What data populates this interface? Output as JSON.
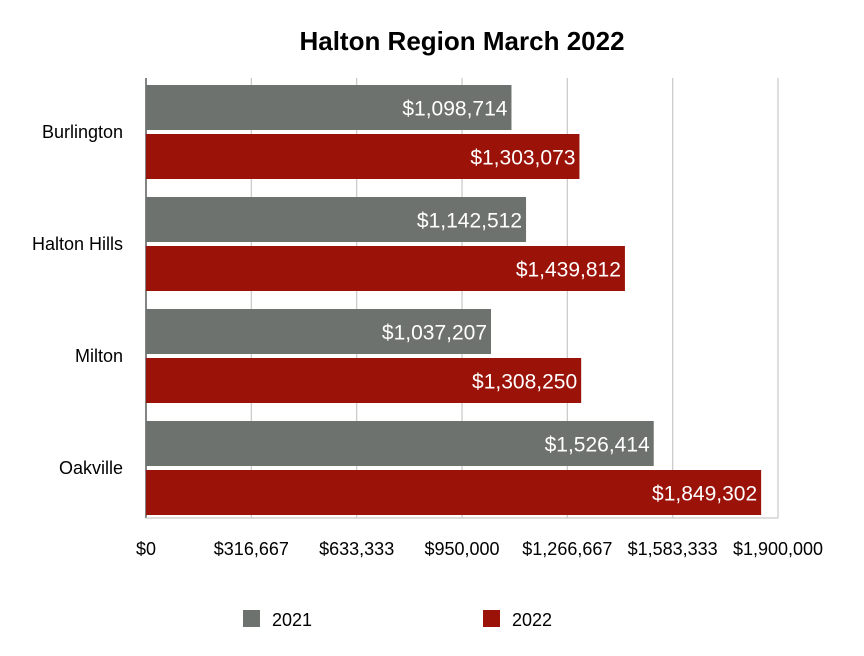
{
  "chart_data": {
    "type": "bar",
    "orientation": "horizontal",
    "title": "Halton Region March 2022",
    "categories": [
      "Burlington",
      "Halton Hills",
      "Milton",
      "Oakville"
    ],
    "series": [
      {
        "name": "2021",
        "color": "#6d726f",
        "values": [
          1098714,
          1142512,
          1037207,
          1526414
        ],
        "labels": [
          "$1,098,714",
          "$1,142,512",
          "$1,037,207",
          "$1,526,414"
        ]
      },
      {
        "name": "2022",
        "color": "#9b1208",
        "values": [
          1303073,
          1439812,
          1308250,
          1849302
        ],
        "labels": [
          "$1,303,073",
          "$1,439,812",
          "$1,308,250",
          "$1,849,302"
        ]
      }
    ],
    "xlim": [
      0,
      1900000
    ],
    "x_ticks": [
      0,
      316667,
      633333,
      950000,
      1266667,
      1583333,
      1900000
    ],
    "x_tick_labels": [
      "$0",
      "$316,667",
      "$633,333",
      "$950,000",
      "$1,266,667",
      "$1,583,333",
      "$1,900,000"
    ],
    "grid": true,
    "legend_position": "bottom"
  }
}
